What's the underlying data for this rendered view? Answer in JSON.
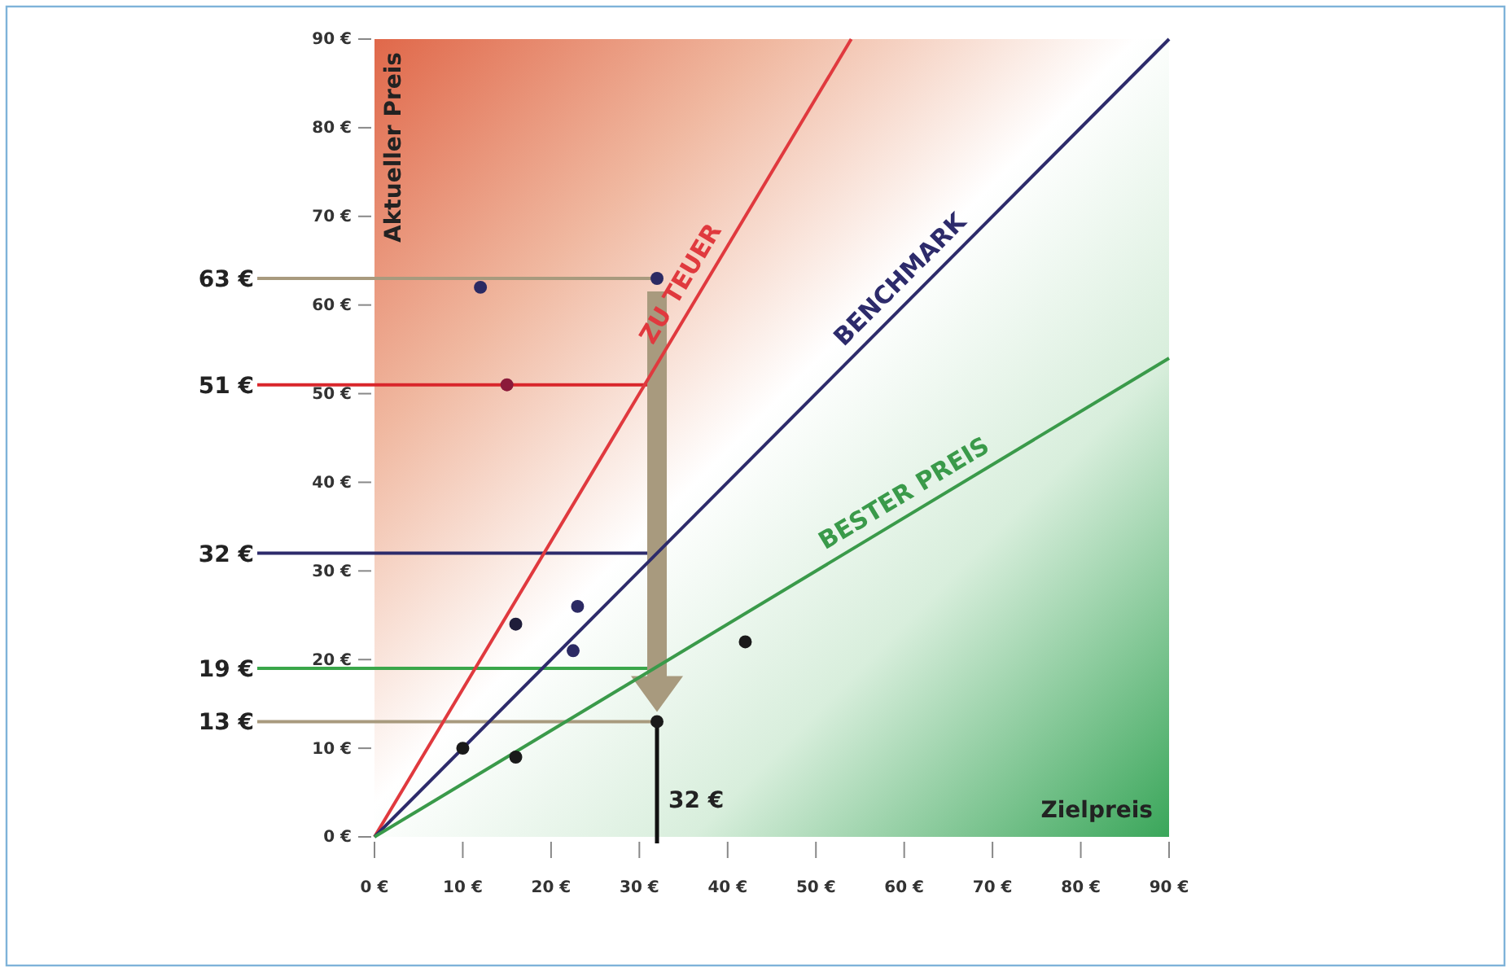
{
  "chart_data": {
    "type": "scatter",
    "xlabel": "Zielpreis",
    "ylabel": "Aktueller Preis",
    "xlim": [
      0,
      90
    ],
    "ylim": [
      0,
      90
    ],
    "xticks": [
      {
        "value": 0,
        "label": "0 €"
      },
      {
        "value": 10,
        "label": "10 €"
      },
      {
        "value": 20,
        "label": "20 €"
      },
      {
        "value": 30,
        "label": "30 €"
      },
      {
        "value": 40,
        "label": "40 €"
      },
      {
        "value": 50,
        "label": "50 €"
      },
      {
        "value": 60,
        "label": "60 €"
      },
      {
        "value": 70,
        "label": "70 €"
      },
      {
        "value": 80,
        "label": "80 €"
      },
      {
        "value": 90,
        "label": "90 €"
      }
    ],
    "yticks": [
      {
        "value": 0,
        "label": "0 €"
      },
      {
        "value": 10,
        "label": "10 €"
      },
      {
        "value": 20,
        "label": "20 €"
      },
      {
        "value": 30,
        "label": "30 €"
      },
      {
        "value": 40,
        "label": "40 €"
      },
      {
        "value": 50,
        "label": "50 €"
      },
      {
        "value": 60,
        "label": "60 €"
      },
      {
        "value": 70,
        "label": "70 €"
      },
      {
        "value": 80,
        "label": "80 €"
      },
      {
        "value": 90,
        "label": "90 €"
      }
    ],
    "series": [
      {
        "name": "ZU TEUER",
        "type": "line",
        "color": "#e0393e",
        "x": [
          0,
          54
        ],
        "values": [
          0,
          90
        ]
      },
      {
        "name": "BENCHMARK",
        "type": "line",
        "color": "#2d2b6b",
        "x": [
          0,
          90
        ],
        "values": [
          0,
          90
        ]
      },
      {
        "name": "BESTER PREIS",
        "type": "line",
        "color": "#3a9a4a",
        "x": [
          0,
          90
        ],
        "values": [
          0,
          54
        ]
      },
      {
        "marker": "circle",
        "colors": [
          "#2b2a63",
          "#2b2a63",
          "#8b1a3a",
          "#1f1d3a",
          "#2b2a63",
          "#2b2a63",
          "#1a1a1a",
          "#1a1a1a",
          "#1a1a1a",
          "#1a1a1a"
        ],
        "x": [
          12,
          32,
          15,
          16,
          23,
          22.5,
          42,
          10,
          16,
          32
        ],
        "values": [
          62,
          63,
          51,
          24,
          26,
          21,
          22,
          10,
          9,
          13
        ]
      }
    ],
    "ref_lines": [
      {
        "axis": "y",
        "value": 63,
        "label": "63 €",
        "color": "#a89a7e"
      },
      {
        "axis": "y",
        "value": 51,
        "label": "51 €",
        "color": "#d9262b"
      },
      {
        "axis": "y",
        "value": 32,
        "label": "32 €",
        "color": "#2d2b6b"
      },
      {
        "axis": "y",
        "value": 19,
        "label": "19 €",
        "color": "#3aa64a"
      },
      {
        "axis": "y",
        "value": 13,
        "label": "13 €",
        "color": "#a89a7e"
      },
      {
        "axis": "x",
        "value": 32,
        "label": "32 €",
        "color": "#111111"
      }
    ],
    "grid": false
  }
}
